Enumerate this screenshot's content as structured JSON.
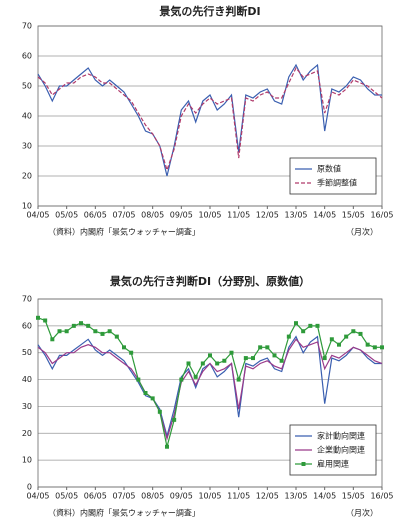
{
  "chart_data": [
    {
      "type": "line",
      "title": "景気の先行き判断DI",
      "categories": [
        "04/05",
        null,
        null,
        null,
        "05/05",
        null,
        null,
        null,
        "06/05",
        null,
        null,
        null,
        "07/05",
        null,
        null,
        null,
        "08/05",
        null,
        null,
        null,
        "09/05",
        null,
        null,
        null,
        "10/05",
        null,
        null,
        null,
        "11/05",
        null,
        null,
        null,
        "12/05",
        null,
        null,
        null,
        "13/05",
        null,
        null,
        null,
        "14/05",
        null,
        null,
        null,
        "15/05",
        null,
        null,
        null,
        "16/05"
      ],
      "series": [
        {
          "name": "原数値",
          "color": "#3a5fb0",
          "style": "solid",
          "values": [
            54,
            50,
            45,
            50,
            50,
            52,
            54,
            56,
            52,
            50,
            52,
            50,
            48,
            44,
            40,
            35,
            34,
            30,
            20,
            30,
            42,
            45,
            38,
            45,
            47,
            42,
            44,
            47,
            28,
            47,
            46,
            48,
            49,
            45,
            44,
            53,
            57,
            52,
            55,
            57,
            35,
            49,
            48,
            50,
            53,
            52,
            49,
            47,
            47
          ]
        },
        {
          "name": "季節調整値",
          "color": "#b03a6a",
          "style": "dashed",
          "values": [
            53,
            51,
            47,
            49,
            51,
            51,
            53,
            54,
            53,
            51,
            51,
            49,
            47,
            45,
            41,
            37,
            34,
            30,
            22,
            29,
            40,
            44,
            41,
            44,
            46,
            44,
            45,
            46,
            26,
            46,
            45,
            47,
            48,
            46,
            46,
            51,
            56,
            53,
            54,
            55,
            41,
            48,
            47,
            49,
            52,
            51,
            50,
            48,
            46
          ]
        }
      ],
      "ylim": [
        10,
        70
      ],
      "yticks": [
        10,
        20,
        30,
        40,
        50,
        60,
        70
      ],
      "grid": true,
      "legend": "lower right",
      "source": "（資料）内閣府「景気ウォッチャー調査」",
      "xlabel": "（月次）"
    },
    {
      "type": "line",
      "title": "景気の先行き判断DI（分野別、原数値）",
      "categories": [
        "04/05",
        null,
        null,
        null,
        "05/05",
        null,
        null,
        null,
        "06/05",
        null,
        null,
        null,
        "07/05",
        null,
        null,
        null,
        "08/05",
        null,
        null,
        null,
        "09/05",
        null,
        null,
        null,
        "10/05",
        null,
        null,
        null,
        "11/05",
        null,
        null,
        null,
        "12/05",
        null,
        null,
        null,
        "13/05",
        null,
        null,
        null,
        "14/05",
        null,
        null,
        null,
        "15/05",
        null,
        null,
        null,
        "16/05"
      ],
      "series": [
        {
          "name": "家計動向関連",
          "color": "#3a5fb0",
          "style": "solid",
          "values": [
            53,
            49,
            44,
            49,
            49,
            51,
            53,
            55,
            51,
            49,
            51,
            49,
            47,
            43,
            39,
            34,
            33,
            29,
            19,
            29,
            41,
            44,
            37,
            44,
            46,
            41,
            43,
            46,
            26,
            46,
            45,
            47,
            48,
            44,
            43,
            52,
            56,
            50,
            54,
            56,
            31,
            48,
            47,
            49,
            52,
            51,
            48,
            46,
            46
          ]
        },
        {
          "name": "企業動向関連",
          "color": "#9a3a8a",
          "style": "solid",
          "values": [
            52,
            50,
            46,
            48,
            50,
            50,
            52,
            53,
            52,
            50,
            50,
            48,
            46,
            44,
            40,
            35,
            33,
            28,
            18,
            27,
            39,
            43,
            38,
            43,
            46,
            43,
            44,
            46,
            29,
            45,
            44,
            46,
            47,
            45,
            44,
            51,
            55,
            52,
            53,
            54,
            44,
            49,
            48,
            50,
            52,
            51,
            49,
            47,
            46
          ]
        },
        {
          "name": "雇用関連",
          "color": "#2e9a3a",
          "style": "solid",
          "marker": "square",
          "values": [
            63,
            62,
            55,
            58,
            58,
            60,
            61,
            60,
            58,
            57,
            58,
            56,
            52,
            50,
            40,
            35,
            33,
            28,
            15,
            25,
            40,
            46,
            41,
            46,
            49,
            46,
            47,
            50,
            40,
            48,
            48,
            52,
            52,
            49,
            47,
            56,
            61,
            58,
            60,
            60,
            48,
            55,
            53,
            56,
            58,
            57,
            53,
            52,
            52
          ]
        }
      ],
      "ylim": [
        0,
        70
      ],
      "yticks": [
        0,
        10,
        20,
        30,
        40,
        50,
        60,
        70
      ],
      "grid": true,
      "legend": "lower right",
      "source": "（資料）内閣府「景気ウォッチャー調査」",
      "xlabel": "（月次）"
    }
  ]
}
